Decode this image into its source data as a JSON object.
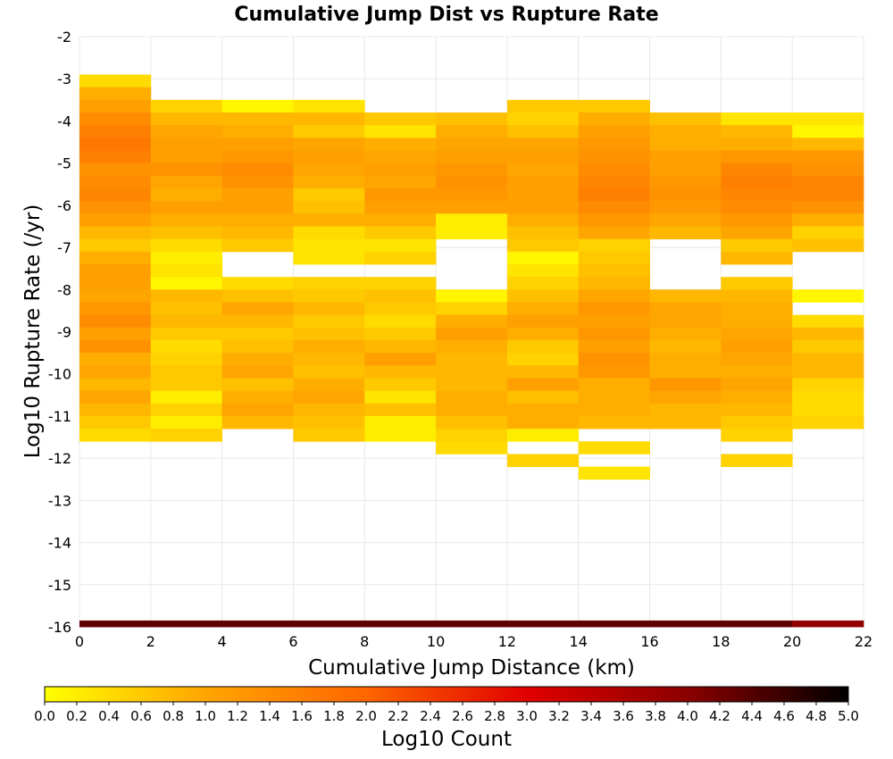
{
  "chart_data": {
    "type": "heatmap",
    "title": "Cumulative Jump Dist vs Rupture Rate",
    "xlabel": "Cumulative Jump Distance (km)",
    "ylabel": "Log10 Rupture Rate (/yr)",
    "xlim": [
      0,
      22
    ],
    "ylim": [
      -16,
      -2
    ],
    "x_ticks": [
      0,
      2,
      4,
      6,
      8,
      10,
      12,
      14,
      16,
      18,
      20,
      22
    ],
    "y_ticks": [
      -2,
      -3,
      -4,
      -5,
      -6,
      -7,
      -8,
      -9,
      -10,
      -11,
      -12,
      -13,
      -14,
      -15,
      -16
    ],
    "grid": true,
    "x_bins": [
      0,
      2,
      4,
      6,
      8,
      10,
      12,
      14,
      16,
      18,
      20
    ],
    "x_bin_width": 2,
    "y_bin_height": 0.3,
    "colorbar": {
      "label": "Log10 Count",
      "range": [
        0.0,
        5.0
      ],
      "ticks": [
        "0.0",
        "0.2",
        "0.4",
        "0.6",
        "0.8",
        "1.0",
        "1.2",
        "1.4",
        "1.6",
        "1.8",
        "2.0",
        "2.2",
        "2.4",
        "2.6",
        "2.8",
        "3.0",
        "3.2",
        "3.4",
        "3.6",
        "3.8",
        "4.0",
        "4.2",
        "4.4",
        "4.6",
        "4.8",
        "5.0"
      ],
      "colors": [
        "#ffff00",
        "#ffa500",
        "#ff6600",
        "#e00000",
        "#8b0000",
        "#000000"
      ]
    },
    "columns": [
      {
        "x": 0,
        "cells": [
          [
            -3.05,
            0.4
          ],
          [
            -3.35,
            0.9
          ],
          [
            -3.65,
            1.1
          ],
          [
            -3.95,
            1.4
          ],
          [
            -4.25,
            1.6
          ],
          [
            -4.55,
            1.7
          ],
          [
            -4.85,
            1.6
          ],
          [
            -5.15,
            1.3
          ],
          [
            -5.45,
            1.4
          ],
          [
            -5.75,
            1.5
          ],
          [
            -6.05,
            1.3
          ],
          [
            -6.35,
            1.1
          ],
          [
            -6.65,
            0.8
          ],
          [
            -6.95,
            0.6
          ],
          [
            -7.25,
            0.9
          ],
          [
            -7.55,
            1.1
          ],
          [
            -7.85,
            1.1
          ],
          [
            -8.15,
            1.0
          ],
          [
            -8.45,
            1.2
          ],
          [
            -8.75,
            1.4
          ],
          [
            -9.05,
            1.1
          ],
          [
            -9.35,
            1.3
          ],
          [
            -9.65,
            0.9
          ],
          [
            -9.95,
            1.0
          ],
          [
            -10.25,
            0.8
          ],
          [
            -10.55,
            1.0
          ],
          [
            -10.85,
            0.8
          ],
          [
            -11.15,
            0.6
          ],
          [
            -11.45,
            0.4
          ],
          [
            -16.0,
            4.3
          ]
        ]
      },
      {
        "x": 2,
        "cells": [
          [
            -3.65,
            0.5
          ],
          [
            -3.95,
            0.8
          ],
          [
            -4.25,
            1.0
          ],
          [
            -4.55,
            1.1
          ],
          [
            -4.85,
            1.1
          ],
          [
            -5.15,
            1.3
          ],
          [
            -5.45,
            1.0
          ],
          [
            -5.75,
            0.9
          ],
          [
            -6.05,
            1.1
          ],
          [
            -6.35,
            0.9
          ],
          [
            -6.65,
            0.7
          ],
          [
            -6.95,
            0.4
          ],
          [
            -7.25,
            0.2
          ],
          [
            -7.55,
            0.3
          ],
          [
            -7.85,
            0.1
          ],
          [
            -8.15,
            0.8
          ],
          [
            -8.45,
            0.7
          ],
          [
            -8.75,
            0.8
          ],
          [
            -9.05,
            0.6
          ],
          [
            -9.35,
            0.4
          ],
          [
            -9.65,
            0.5
          ],
          [
            -9.95,
            0.6
          ],
          [
            -10.25,
            0.6
          ],
          [
            -10.55,
            0.2
          ],
          [
            -10.85,
            0.5
          ],
          [
            -11.15,
            0.2
          ],
          [
            -11.45,
            0.5
          ],
          [
            -16.0,
            4.3
          ]
        ]
      },
      {
        "x": 4,
        "cells": [
          [
            -3.65,
            0.1
          ],
          [
            -3.95,
            0.8
          ],
          [
            -4.25,
            0.9
          ],
          [
            -4.55,
            1.1
          ],
          [
            -4.85,
            1.2
          ],
          [
            -5.15,
            1.4
          ],
          [
            -5.45,
            1.3
          ],
          [
            -5.75,
            1.1
          ],
          [
            -6.05,
            1.1
          ],
          [
            -6.35,
            0.9
          ],
          [
            -6.65,
            0.8
          ],
          [
            -6.95,
            0.6
          ],
          [
            -7.85,
            0.4
          ],
          [
            -8.15,
            0.7
          ],
          [
            -8.45,
            1.0
          ],
          [
            -8.75,
            0.8
          ],
          [
            -9.05,
            0.6
          ],
          [
            -9.35,
            0.7
          ],
          [
            -9.65,
            0.9
          ],
          [
            -9.95,
            1.0
          ],
          [
            -10.25,
            0.7
          ],
          [
            -10.55,
            0.9
          ],
          [
            -10.85,
            1.0
          ],
          [
            -11.15,
            0.8
          ],
          [
            -16.0,
            4.3
          ]
        ]
      },
      {
        "x": 6,
        "cells": [
          [
            -3.65,
            0.3
          ],
          [
            -3.95,
            0.8
          ],
          [
            -4.25,
            0.6
          ],
          [
            -4.55,
            1.0
          ],
          [
            -4.85,
            1.1
          ],
          [
            -5.15,
            1.0
          ],
          [
            -5.45,
            0.9
          ],
          [
            -5.75,
            0.6
          ],
          [
            -6.05,
            0.7
          ],
          [
            -6.35,
            0.9
          ],
          [
            -6.65,
            0.4
          ],
          [
            -6.95,
            0.3
          ],
          [
            -7.25,
            0.3
          ],
          [
            -7.85,
            0.5
          ],
          [
            -8.15,
            0.6
          ],
          [
            -8.45,
            0.8
          ],
          [
            -8.75,
            0.6
          ],
          [
            -9.05,
            0.7
          ],
          [
            -9.35,
            0.9
          ],
          [
            -9.65,
            0.8
          ],
          [
            -9.95,
            0.7
          ],
          [
            -10.25,
            0.9
          ],
          [
            -10.55,
            1.0
          ],
          [
            -10.85,
            0.8
          ],
          [
            -11.15,
            0.7
          ],
          [
            -11.45,
            0.6
          ],
          [
            -16.0,
            4.3
          ]
        ]
      },
      {
        "x": 8,
        "cells": [
          [
            -3.95,
            0.6
          ],
          [
            -4.25,
            0.3
          ],
          [
            -4.55,
            0.9
          ],
          [
            -4.85,
            1.0
          ],
          [
            -5.15,
            1.1
          ],
          [
            -5.45,
            1.0
          ],
          [
            -5.75,
            1.2
          ],
          [
            -6.05,
            1.1
          ],
          [
            -6.35,
            0.9
          ],
          [
            -6.65,
            0.6
          ],
          [
            -6.95,
            0.3
          ],
          [
            -7.25,
            0.5
          ],
          [
            -7.85,
            0.5
          ],
          [
            -8.15,
            0.7
          ],
          [
            -8.45,
            0.6
          ],
          [
            -8.75,
            0.4
          ],
          [
            -9.05,
            0.6
          ],
          [
            -9.35,
            0.8
          ],
          [
            -9.65,
            1.1
          ],
          [
            -9.95,
            0.8
          ],
          [
            -10.25,
            0.6
          ],
          [
            -10.55,
            0.3
          ],
          [
            -10.85,
            0.7
          ],
          [
            -11.15,
            0.2
          ],
          [
            -11.45,
            0.2
          ],
          [
            -16.0,
            4.3
          ]
        ]
      },
      {
        "x": 10,
        "cells": [
          [
            -3.95,
            0.7
          ],
          [
            -4.25,
            0.9
          ],
          [
            -4.55,
            1.0
          ],
          [
            -4.85,
            1.1
          ],
          [
            -5.15,
            1.2
          ],
          [
            -5.45,
            1.3
          ],
          [
            -5.75,
            1.2
          ],
          [
            -6.05,
            1.1
          ],
          [
            -6.35,
            0.2
          ],
          [
            -6.65,
            0.2
          ],
          [
            -8.15,
            0.1
          ],
          [
            -8.45,
            0.5
          ],
          [
            -8.75,
            0.9
          ],
          [
            -9.05,
            1.1
          ],
          [
            -9.35,
            0.9
          ],
          [
            -9.65,
            0.8
          ],
          [
            -9.95,
            0.8
          ],
          [
            -10.25,
            0.8
          ],
          [
            -10.55,
            0.9
          ],
          [
            -10.85,
            0.9
          ],
          [
            -11.15,
            0.7
          ],
          [
            -11.45,
            0.5
          ],
          [
            -11.75,
            0.4
          ],
          [
            -16.0,
            4.3
          ]
        ]
      },
      {
        "x": 12,
        "cells": [
          [
            -3.65,
            0.6
          ],
          [
            -3.95,
            0.5
          ],
          [
            -4.25,
            0.7
          ],
          [
            -4.55,
            1.0
          ],
          [
            -4.85,
            1.1
          ],
          [
            -5.15,
            1.0
          ],
          [
            -5.45,
            1.1
          ],
          [
            -5.75,
            1.1
          ],
          [
            -6.05,
            1.1
          ],
          [
            -6.35,
            0.9
          ],
          [
            -6.65,
            0.7
          ],
          [
            -6.95,
            0.6
          ],
          [
            -7.25,
            0.1
          ],
          [
            -7.55,
            0.3
          ],
          [
            -7.85,
            0.5
          ],
          [
            -8.15,
            0.7
          ],
          [
            -8.45,
            0.9
          ],
          [
            -8.75,
            1.1
          ],
          [
            -9.05,
            0.9
          ],
          [
            -9.35,
            0.6
          ],
          [
            -9.65,
            0.5
          ],
          [
            -9.95,
            0.8
          ],
          [
            -10.25,
            1.1
          ],
          [
            -10.55,
            0.7
          ],
          [
            -10.85,
            0.9
          ],
          [
            -11.15,
            0.9
          ],
          [
            -11.45,
            0.2
          ],
          [
            -11.75,
            -1
          ],
          [
            -12.05,
            0.5
          ],
          [
            -16.0,
            4.3
          ]
        ]
      },
      {
        "x": 14,
        "cells": [
          [
            -3.65,
            0.6
          ],
          [
            -3.95,
            0.9
          ],
          [
            -4.25,
            1.1
          ],
          [
            -4.55,
            1.2
          ],
          [
            -4.85,
            1.3
          ],
          [
            -5.15,
            1.4
          ],
          [
            -5.45,
            1.5
          ],
          [
            -5.75,
            1.6
          ],
          [
            -6.05,
            1.4
          ],
          [
            -6.35,
            1.2
          ],
          [
            -6.65,
            1.0
          ],
          [
            -6.95,
            0.5
          ],
          [
            -7.25,
            0.6
          ],
          [
            -7.55,
            0.7
          ],
          [
            -7.85,
            0.8
          ],
          [
            -8.15,
            1.0
          ],
          [
            -8.45,
            1.2
          ],
          [
            -8.75,
            1.1
          ],
          [
            -9.05,
            1.2
          ],
          [
            -9.35,
            1.1
          ],
          [
            -9.65,
            1.3
          ],
          [
            -9.95,
            1.2
          ],
          [
            -10.25,
            0.9
          ],
          [
            -10.55,
            0.9
          ],
          [
            -10.85,
            0.9
          ],
          [
            -11.15,
            0.8
          ],
          [
            -11.75,
            0.4
          ],
          [
            -12.35,
            0.3
          ],
          [
            -16.0,
            4.3
          ]
        ]
      },
      {
        "x": 16,
        "cells": [
          [
            -3.95,
            0.7
          ],
          [
            -4.25,
            0.9
          ],
          [
            -4.55,
            0.9
          ],
          [
            -4.85,
            1.1
          ],
          [
            -5.15,
            1.1
          ],
          [
            -5.45,
            1.2
          ],
          [
            -5.75,
            1.3
          ],
          [
            -6.05,
            1.2
          ],
          [
            -6.35,
            1.0
          ],
          [
            -6.65,
            0.8
          ],
          [
            -8.15,
            0.8
          ],
          [
            -8.45,
            1.0
          ],
          [
            -8.75,
            1.0
          ],
          [
            -9.05,
            0.9
          ],
          [
            -9.35,
            0.8
          ],
          [
            -9.65,
            0.9
          ],
          [
            -9.95,
            0.9
          ],
          [
            -10.25,
            1.2
          ],
          [
            -10.55,
            1.0
          ],
          [
            -10.85,
            0.8
          ],
          [
            -11.15,
            0.8
          ],
          [
            -16.0,
            4.3
          ]
        ]
      },
      {
        "x": 18,
        "cells": [
          [
            -3.95,
            0.3
          ],
          [
            -4.25,
            0.8
          ],
          [
            -4.55,
            0.9
          ],
          [
            -4.85,
            1.2
          ],
          [
            -5.15,
            1.5
          ],
          [
            -5.45,
            1.6
          ],
          [
            -5.75,
            1.5
          ],
          [
            -6.05,
            1.4
          ],
          [
            -6.35,
            1.2
          ],
          [
            -6.65,
            1.0
          ],
          [
            -6.95,
            0.6
          ],
          [
            -7.25,
            0.8
          ],
          [
            -7.85,
            0.6
          ],
          [
            -8.15,
            0.8
          ],
          [
            -8.45,
            0.9
          ],
          [
            -8.75,
            0.9
          ],
          [
            -9.05,
            1.0
          ],
          [
            -9.35,
            1.1
          ],
          [
            -9.65,
            1.0
          ],
          [
            -9.95,
            0.9
          ],
          [
            -10.25,
            1.0
          ],
          [
            -10.55,
            0.9
          ],
          [
            -10.85,
            0.8
          ],
          [
            -11.15,
            0.6
          ],
          [
            -11.45,
            0.5
          ],
          [
            -12.05,
            0.5
          ],
          [
            -16.0,
            4.3
          ]
        ]
      },
      {
        "x": 20,
        "cells": [
          [
            -3.95,
            0.3
          ],
          [
            -4.25,
            0.1
          ],
          [
            -4.55,
            0.8
          ],
          [
            -4.85,
            1.2
          ],
          [
            -5.15,
            1.3
          ],
          [
            -5.45,
            1.5
          ],
          [
            -5.75,
            1.5
          ],
          [
            -6.05,
            1.3
          ],
          [
            -6.35,
            0.9
          ],
          [
            -6.65,
            0.5
          ],
          [
            -6.95,
            0.7
          ],
          [
            -8.15,
            0.1
          ],
          [
            -8.75,
            0.4
          ],
          [
            -9.05,
            0.8
          ],
          [
            -9.35,
            0.6
          ],
          [
            -9.65,
            0.8
          ],
          [
            -9.95,
            0.8
          ],
          [
            -10.25,
            0.5
          ],
          [
            -10.55,
            0.4
          ],
          [
            -10.85,
            0.4
          ],
          [
            -11.15,
            0.5
          ],
          [
            -16.0,
            3.9
          ]
        ]
      }
    ]
  }
}
